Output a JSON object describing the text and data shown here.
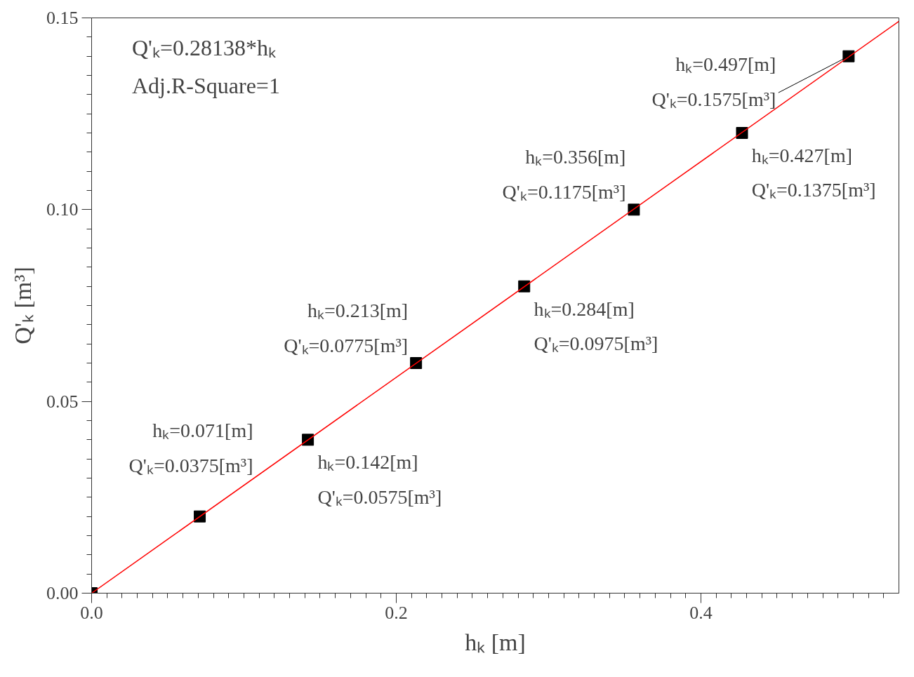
{
  "chart_data": {
    "type": "scatter",
    "xlabel": "hₖ [m]",
    "ylabel": "Q'ₖ [m³]",
    "x": [
      0,
      0.071,
      0.142,
      0.213,
      0.284,
      0.356,
      0.427,
      0.497
    ],
    "series": [
      {
        "type": "scatter",
        "color": "#000000",
        "values": [
          0,
          0.02,
          0.04,
          0.06,
          0.08,
          0.1,
          0.12,
          0.14
        ]
      },
      {
        "type": "line",
        "color": "#ff0000",
        "marker": "none",
        "line_style": "solid",
        "x": [
          0,
          0.53
        ],
        "values": [
          0,
          0.1491
        ]
      }
    ],
    "xlim": [
      0,
      0.53
    ],
    "ylim": [
      0,
      0.15
    ],
    "xticks": [
      {
        "value": 0,
        "label": "0.0"
      },
      {
        "value": 0.2,
        "label": "0.2"
      },
      {
        "value": 0.4,
        "label": "0.4"
      },
      {
        "value": 0.01,
        "label": null
      },
      {
        "value": 0.02,
        "label": null
      },
      {
        "value": 0.03,
        "label": null
      },
      {
        "value": 0.04,
        "label": null
      },
      {
        "value": 0.05,
        "label": null
      },
      {
        "value": 0.06,
        "label": null
      },
      {
        "value": 0.07,
        "label": null
      },
      {
        "value": 0.08,
        "label": null
      },
      {
        "value": 0.09,
        "label": null
      },
      {
        "value": 0.1,
        "label": null
      },
      {
        "value": 0.11,
        "label": null
      },
      {
        "value": 0.12,
        "label": null
      },
      {
        "value": 0.13,
        "label": null
      },
      {
        "value": 0.14,
        "label": null
      },
      {
        "value": 0.15,
        "label": null
      },
      {
        "value": 0.16,
        "label": null
      },
      {
        "value": 0.17,
        "label": null
      },
      {
        "value": 0.18,
        "label": null
      },
      {
        "value": 0.19,
        "label": null
      },
      {
        "value": 0.21,
        "label": null
      },
      {
        "value": 0.22,
        "label": null
      },
      {
        "value": 0.23,
        "label": null
      },
      {
        "value": 0.24,
        "label": null
      },
      {
        "value": 0.25,
        "label": null
      },
      {
        "value": 0.26,
        "label": null
      },
      {
        "value": 0.27,
        "label": null
      },
      {
        "value": 0.28,
        "label": null
      },
      {
        "value": 0.29,
        "label": null
      },
      {
        "value": 0.3,
        "label": null
      },
      {
        "value": 0.31,
        "label": null
      },
      {
        "value": 0.32,
        "label": null
      },
      {
        "value": 0.33,
        "label": null
      },
      {
        "value": 0.34,
        "label": null
      },
      {
        "value": 0.35,
        "label": null
      },
      {
        "value": 0.36,
        "label": null
      },
      {
        "value": 0.37,
        "label": null
      },
      {
        "value": 0.38,
        "label": null
      },
      {
        "value": 0.39,
        "label": null
      },
      {
        "value": 0.41,
        "label": null
      },
      {
        "value": 0.42,
        "label": null
      },
      {
        "value": 0.43,
        "label": null
      },
      {
        "value": 0.44,
        "label": null
      },
      {
        "value": 0.45,
        "label": null
      },
      {
        "value": 0.46,
        "label": null
      },
      {
        "value": 0.47,
        "label": null
      },
      {
        "value": 0.48,
        "label": null
      },
      {
        "value": 0.49,
        "label": null
      },
      {
        "value": 0.5,
        "label": null
      },
      {
        "value": 0.51,
        "label": null
      },
      {
        "value": 0.52,
        "label": null
      }
    ],
    "yticks": [
      {
        "value": 0,
        "label": "0.00"
      },
      {
        "value": 0.05,
        "label": "0.05"
      },
      {
        "value": 0.1,
        "label": "0.10"
      },
      {
        "value": 0.15,
        "label": "0.15"
      },
      {
        "value": 0.005,
        "label": null
      },
      {
        "value": 0.01,
        "label": null
      },
      {
        "value": 0.015,
        "label": null
      },
      {
        "value": 0.02,
        "label": null
      },
      {
        "value": 0.025,
        "label": null
      },
      {
        "value": 0.03,
        "label": null
      },
      {
        "value": 0.035,
        "label": null
      },
      {
        "value": 0.04,
        "label": null
      },
      {
        "value": 0.045,
        "label": null
      },
      {
        "value": 0.055,
        "label": null
      },
      {
        "value": 0.06,
        "label": null
      },
      {
        "value": 0.065,
        "label": null
      },
      {
        "value": 0.07,
        "label": null
      },
      {
        "value": 0.075,
        "label": null
      },
      {
        "value": 0.08,
        "label": null
      },
      {
        "value": 0.085,
        "label": null
      },
      {
        "value": 0.09,
        "label": null
      },
      {
        "value": 0.095,
        "label": null
      },
      {
        "value": 0.105,
        "label": null
      },
      {
        "value": 0.11,
        "label": null
      },
      {
        "value": 0.115,
        "label": null
      },
      {
        "value": 0.12,
        "label": null
      },
      {
        "value": 0.125,
        "label": null
      },
      {
        "value": 0.13,
        "label": null
      },
      {
        "value": 0.135,
        "label": null
      },
      {
        "value": 0.14,
        "label": null
      },
      {
        "value": 0.145,
        "label": null
      }
    ],
    "marker": "square",
    "annotations": [
      "Q'ₖ=0.28138*hₖ\nAdj.R-Square=1",
      {
        "text": "hₖ=0.071[m]\nQ'ₖ=0.0375[m³]",
        "x": 0.071,
        "y": 0.02
      },
      {
        "text": "hₖ=0.142[m]\nQ'ₖ=0.0575[m³]",
        "x": 0.142,
        "y": 0.04
      },
      {
        "text": "hₖ=0.213[m]\nQ'ₖ=0.0775[m³]",
        "x": 0.213,
        "y": 0.06
      },
      {
        "text": "hₖ=0.284[m]\nQ'ₖ=0.0975[m³]",
        "x": 0.284,
        "y": 0.08
      },
      {
        "text": "hₖ=0.356[m]\nQ'ₖ=0.1175[m³]",
        "x": 0.356,
        "y": 0.1
      },
      {
        "text": "hₖ=0.427[m]\nQ'ₖ=0.1375[m³]",
        "x": 0.427,
        "y": 0.12
      },
      {
        "text": "hₖ=0.497[m]\nQ'ₖ=0.1575[m³]",
        "x": 0.497,
        "y": 0.14
      }
    ]
  }
}
